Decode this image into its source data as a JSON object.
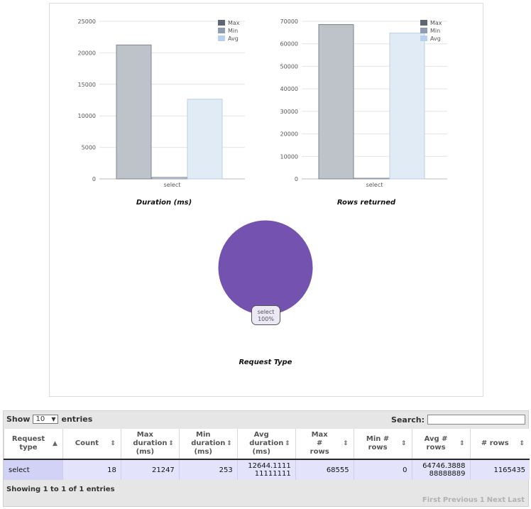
{
  "chart_data": [
    {
      "type": "bar",
      "title": "Duration (ms)",
      "categories": [
        "select"
      ],
      "series": [
        {
          "name": "Max",
          "values": [
            21247
          ],
          "color": "#bec2c9",
          "stroke": "#7d8590"
        },
        {
          "name": "Min",
          "values": [
            253
          ],
          "color": "#c4cad4",
          "stroke": "#8f99a8"
        },
        {
          "name": "Avg",
          "values": [
            12644.111111111
          ],
          "color": "#e1ebf5",
          "stroke": "#b9cfe6"
        }
      ],
      "yticks": [
        0,
        5000,
        10000,
        15000,
        20000,
        25000
      ],
      "ylim": [
        0,
        25000
      ],
      "legend_position": "top-right",
      "legend_colors": [
        "#5e6673",
        "#909caf",
        "#b9d1ec"
      ]
    },
    {
      "type": "bar",
      "title": "Rows returned",
      "categories": [
        "select"
      ],
      "series": [
        {
          "name": "Max",
          "values": [
            68555
          ],
          "color": "#bec2c9",
          "stroke": "#7d8590"
        },
        {
          "name": "Min",
          "values": [
            0
          ],
          "color": "#c4cad4",
          "stroke": "#8f99a8"
        },
        {
          "name": "Avg",
          "values": [
            64746.38888888889
          ],
          "color": "#e1ebf5",
          "stroke": "#b9cfe6"
        }
      ],
      "yticks": [
        0,
        10000,
        20000,
        30000,
        40000,
        50000,
        60000,
        70000
      ],
      "ylim": [
        0,
        70000
      ],
      "legend_position": "top-right",
      "legend_colors": [
        "#5e6673",
        "#909caf",
        "#b9d1ec"
      ]
    },
    {
      "type": "pie",
      "title": "Request Type",
      "slices": [
        {
          "label": "select",
          "value": 100,
          "percent_label": "100%",
          "color": "#7352b0"
        }
      ]
    }
  ],
  "table": {
    "length_label_before": "Show",
    "length_value": "10",
    "length_label_after": "entries",
    "search_label": "Search:",
    "search_value": "",
    "columns": [
      {
        "label": "Request type",
        "sort": "asc"
      },
      {
        "label": "Count",
        "sort": "both"
      },
      {
        "label": "Max duration (ms)",
        "sort": "both"
      },
      {
        "label": "Min duration (ms)",
        "sort": "both"
      },
      {
        "label": "Avg duration (ms)",
        "sort": "both"
      },
      {
        "label": "Max # rows",
        "sort": "both"
      },
      {
        "label": "Min # rows",
        "sort": "both"
      },
      {
        "label": "Avg # rows",
        "sort": "both"
      },
      {
        "label": "# rows",
        "sort": "both"
      }
    ],
    "rows": [
      [
        "select",
        "18",
        "21247",
        "253",
        "12644.111111111111",
        "68555",
        "0",
        "64746.388888888889",
        "1165435"
      ]
    ],
    "info": "Showing 1 to 1 of 1 entries",
    "pagination": {
      "first": "First",
      "previous": "Previous",
      "page": "1",
      "next": "Next",
      "last": "Last"
    },
    "icons": {
      "sort_asc": "sort-asc-icon",
      "sort_both": "sort-both-icon",
      "dropdown": "chevron-down-icon"
    }
  }
}
